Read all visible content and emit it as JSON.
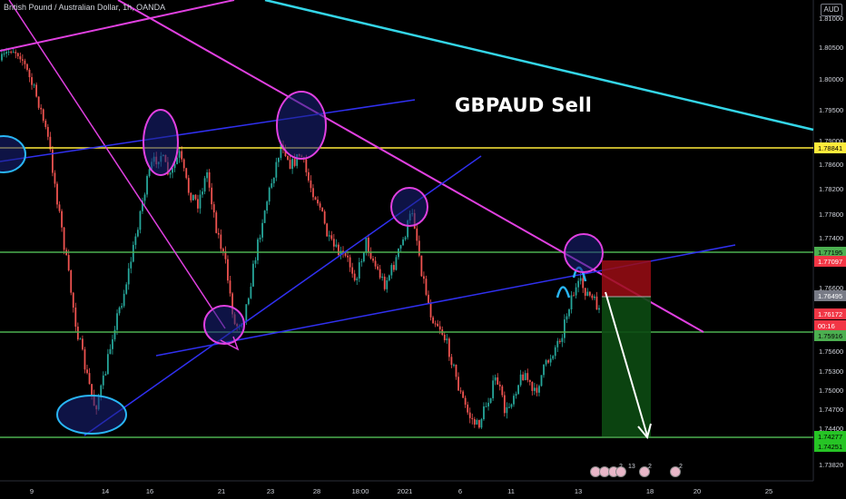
{
  "header": {
    "title": "British Pound / Australian Dollar, 1h, OANDA"
  },
  "annotation": {
    "text": "GBPAUD Sell"
  },
  "axis": {
    "currency": "AUD"
  },
  "chart_data": {
    "type": "candlestick",
    "title": "British Pound / Australian Dollar, 1h, OANDA",
    "y_ticks": [
      "1.81000",
      "1.80500",
      "1.80000",
      "1.79500",
      "1.79000",
      "1.78600",
      "1.78200",
      "1.77800",
      "1.77400",
      "1.76600",
      "1.75600",
      "1.75300",
      "1.75000",
      "1.74700",
      "1.74400",
      "1.73820"
    ],
    "x_ticks": [
      "9",
      "14",
      "16",
      "21",
      "23",
      "28",
      "18:00",
      "2021",
      "6",
      "11",
      "13",
      "18",
      "20",
      "25"
    ],
    "price_labels": [
      {
        "value": "1.78841",
        "bg": "#ffeb3b",
        "fg": "#000000"
      },
      {
        "value": "1.77195",
        "bg": "#4caf50",
        "fg": "#000000"
      },
      {
        "value": "1.77097",
        "bg": "#f23645",
        "fg": "#ffffff"
      },
      {
        "value": "1.76495",
        "bg": "#787b86",
        "fg": "#ffffff"
      },
      {
        "value": "1.76172",
        "bg": "#f23645",
        "fg": "#ffffff"
      },
      {
        "value": "00:16",
        "bg": "#f23645",
        "fg": "#ffffff"
      },
      {
        "value": "1.75916",
        "bg": "#4caf50",
        "fg": "#000000"
      },
      {
        "value": "1.74277",
        "bg": "#26c425",
        "fg": "#000000"
      },
      {
        "value": "1.74251",
        "bg": "#26c425",
        "fg": "#000000"
      }
    ],
    "horizontal_levels": [
      {
        "price": 1.78841,
        "color": "#ffeb3b"
      },
      {
        "price": 1.77195,
        "color": "#4caf50"
      },
      {
        "price": 1.75916,
        "color": "#4caf50"
      },
      {
        "price": 1.74251,
        "color": "#4caf50"
      }
    ],
    "trade": {
      "direction": "short",
      "entry": 1.76495,
      "stop": 1.77097,
      "target": 1.74277
    },
    "series": [
      {
        "type": "price_path",
        "values": [
          1.803,
          1.805,
          1.804,
          1.8,
          1.796,
          1.79,
          1.78,
          1.77,
          1.76,
          1.753,
          1.747,
          1.752,
          1.76,
          1.765,
          1.772,
          1.78,
          1.786,
          1.788,
          1.784,
          1.788,
          1.782,
          1.78,
          1.785,
          1.776,
          1.77,
          1.76,
          1.762,
          1.77,
          1.778,
          1.784,
          1.79,
          1.786,
          1.788,
          1.783,
          1.78,
          1.774,
          1.772,
          1.771,
          1.768,
          1.774,
          1.77,
          1.767,
          1.77,
          1.774,
          1.779,
          1.769,
          1.762,
          1.76,
          1.756,
          1.75,
          1.746,
          1.744,
          1.748,
          1.752,
          1.746,
          1.75,
          1.753,
          1.749,
          1.753,
          1.756,
          1.759,
          1.765,
          1.767,
          1.765,
          1.763
        ]
      }
    ]
  },
  "event_badges": [
    {
      "label": "2"
    },
    {
      "label": "13"
    },
    {
      "label": "2"
    },
    {
      "label": "2"
    }
  ]
}
